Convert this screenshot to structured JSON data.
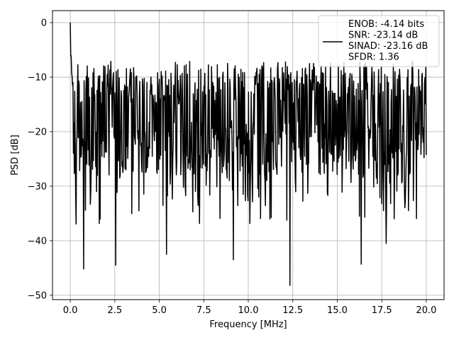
{
  "chart_data": {
    "type": "line",
    "title": "",
    "xlabel": "Frequency [MHz]",
    "ylabel": "PSD [dB]",
    "xlim": [
      -1.0,
      21.0
    ],
    "ylim": [
      -50.8,
      2.2
    ],
    "x_ticks": [
      0.0,
      2.5,
      5.0,
      7.5,
      10.0,
      12.5,
      15.0,
      17.5,
      20.0
    ],
    "x_tick_labels": [
      "0.0",
      "2.5",
      "5.0",
      "7.5",
      "10.0",
      "12.5",
      "15.0",
      "17.5",
      "20.0"
    ],
    "y_ticks": [
      0,
      -10,
      -20,
      -30,
      -40,
      -50
    ],
    "y_tick_labels": [
      "0",
      "−10",
      "−20",
      "−30",
      "−40",
      "−50"
    ],
    "grid": true,
    "legend_position": "upper right",
    "series": [
      {
        "name": "ENOB: -4.14 bits\nSNR: -23.14 dB\nSINAD: -23.16 dB\nSFDR: 1.36",
        "color": "#000000",
        "x_range": [
          0.0,
          20.0
        ],
        "n_points": 800,
        "peak": {
          "x": 0.0,
          "y": 0.0
        },
        "envelope": {
          "typical_max": -10.0,
          "typical_min": -28.0
        },
        "notable_dips": [
          {
            "x": 0.75,
            "y": -45.2
          },
          {
            "x": 2.55,
            "y": -44.5
          },
          {
            "x": 5.4,
            "y": -42.5
          },
          {
            "x": 9.15,
            "y": -43.5
          },
          {
            "x": 12.35,
            "y": -48.2
          },
          {
            "x": 16.35,
            "y": -44.3
          },
          {
            "x": 17.75,
            "y": -40.5
          }
        ]
      }
    ],
    "legend_entries": [
      "ENOB: -4.14 bits",
      "SNR: -23.14 dB",
      "SINAD: -23.16 dB",
      "SFDR: 1.36"
    ]
  }
}
